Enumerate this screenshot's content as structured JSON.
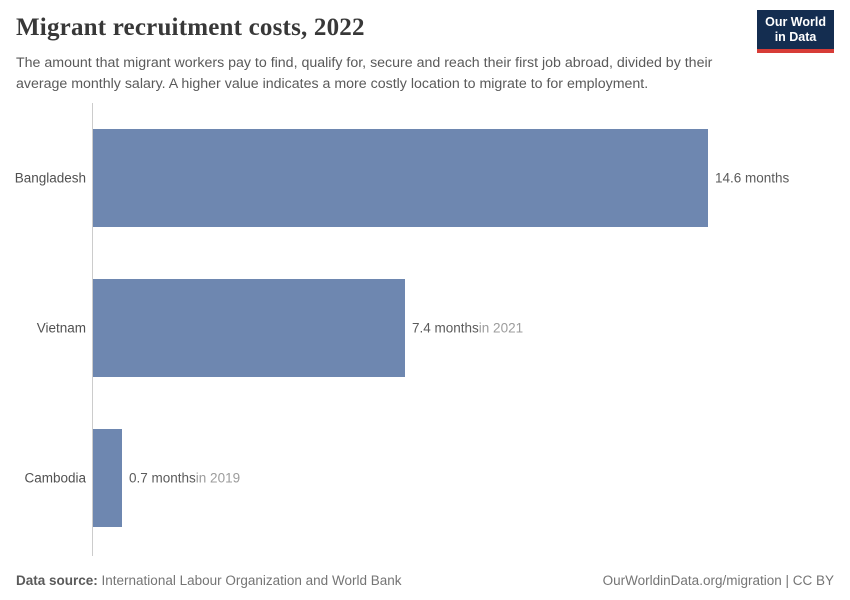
{
  "header": {
    "title": "Migrant recruitment costs, 2022",
    "subtitle_lines": [
      "The amount that migrant workers pay to find, qualify for, secure and reach their first job abroad, divided by their",
      "average monthly salary. A higher value indicates a more costly location to migrate to for employment."
    ],
    "logo": {
      "line1": "Our World",
      "line2": "in Data",
      "bg_color": "#142d50",
      "accent_color": "#d73c37"
    }
  },
  "chart_data": {
    "type": "bar",
    "orientation": "horizontal",
    "title": "Migrant recruitment costs, 2022",
    "unit": "months",
    "xlim": [
      0,
      14.6
    ],
    "grid": false,
    "bar_color": "#6e87b0",
    "categories": [
      "Bangladesh",
      "Vietnam",
      "Cambodia"
    ],
    "values": [
      14.6,
      7.4,
      0.7
    ],
    "bars": [
      {
        "label": "Bangladesh",
        "value": 14.6,
        "value_label": "14.6 months",
        "year_note": ""
      },
      {
        "label": "Vietnam",
        "value": 7.4,
        "value_label": "7.4 months",
        "year_note": "in 2021"
      },
      {
        "label": "Cambodia",
        "value": 0.7,
        "value_label": "0.7 months",
        "year_note": "in 2019"
      }
    ]
  },
  "footer": {
    "source_label": "Data source:",
    "source_text": " International Labour Organization and World Bank",
    "link_text": "OurWorldinData.org/migration | CC BY"
  }
}
